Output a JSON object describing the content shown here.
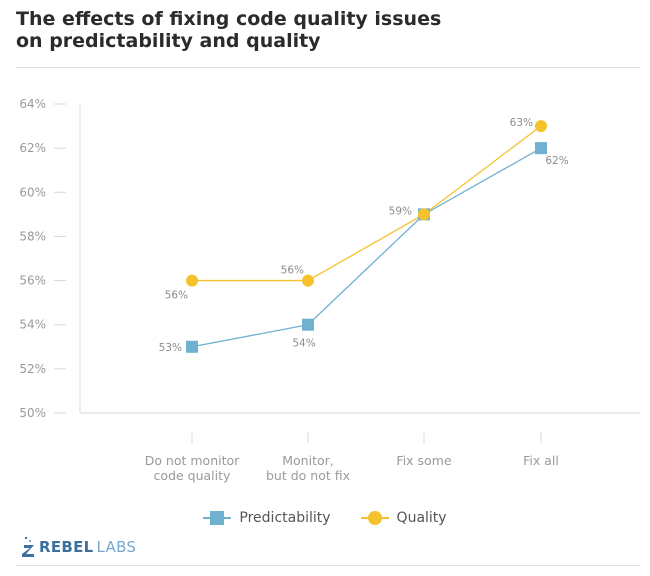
{
  "title_lines": [
    "The effects of fixing code quality issues",
    "on predictability and quality"
  ],
  "colors": {
    "predictability": "#6fb1cf",
    "quality": "#f6c22c",
    "grid": "#d8d8d8",
    "text": "#9a9a9a"
  },
  "chart_data": {
    "type": "line",
    "categories": [
      [
        "Do not monitor",
        "code quality"
      ],
      [
        "Monitor,",
        "but do not fix"
      ],
      [
        "Fix some"
      ],
      [
        "Fix all"
      ]
    ],
    "series": [
      {
        "name": "Predictability",
        "marker": "square",
        "values": [
          53,
          54,
          59,
          62
        ],
        "labels": [
          "53%",
          "54%",
          "59%",
          "62%"
        ]
      },
      {
        "name": "Quality",
        "marker": "circle",
        "values": [
          56,
          56,
          59,
          63
        ],
        "labels": [
          "56%",
          "56%",
          "59%",
          "63%"
        ]
      }
    ],
    "y_ticks": [
      50,
      52,
      54,
      56,
      58,
      60,
      62,
      64
    ],
    "y_tick_labels": [
      "50%",
      "52%",
      "54%",
      "56%",
      "58%",
      "60%",
      "62%",
      "64%"
    ],
    "ylim": [
      50,
      64
    ],
    "grid": false,
    "legend": "bottom-center"
  },
  "legend": {
    "predictability_label": "Predictability",
    "quality_label": "Quality"
  },
  "logo": {
    "part1": "REBEL",
    "part2": "LABS"
  }
}
